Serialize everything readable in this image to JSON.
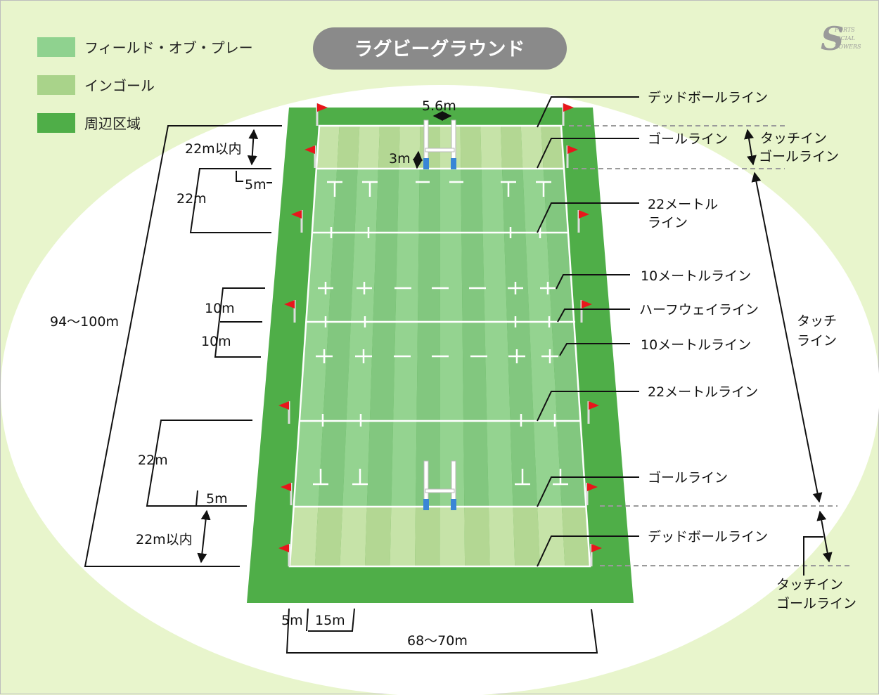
{
  "title": "ラグビーグラウンド",
  "legend": [
    {
      "label": "フィールド・オブ・プレー",
      "color": "#8fd28f"
    },
    {
      "label": "インゴール",
      "color": "#a9d38a"
    },
    {
      "label": "周辺区域",
      "color": "#4fae48"
    }
  ],
  "logo": {
    "line1": "PORTS",
    "line2": "OCIAL",
    "line3": "TOWERS"
  },
  "colors": {
    "background": "#e8f5cc",
    "oval": "#ffffff",
    "surround": "#4fae48",
    "field_light": "#94d390",
    "field_dark": "#82c77f",
    "ingoal_light": "#c6e3a8",
    "ingoal_dark": "#b3d793",
    "flag": "#e8161b",
    "post_pad": "#3a86d6",
    "title_pill": "#8a8a8a"
  },
  "right_labels": {
    "dead_ball_top": "デッドボールライン",
    "goal_top": "ゴールライン",
    "touch_ingoal_top_1": "タッチイン",
    "touch_ingoal_top_2": "ゴールライン",
    "m22_top_1": "22メートル",
    "m22_top_2": "ライン",
    "m10_top": "10メートルライン",
    "halfway": "ハーフウェイライン",
    "touch_1": "タッチ",
    "touch_2": "ライン",
    "m10_bottom": "10メートルライン",
    "m22_bottom": "22メートルライン",
    "goal_bottom": "ゴールライン",
    "dead_ball_bottom": "デッドボールライン",
    "touch_ingoal_bottom_1": "タッチイン",
    "touch_ingoal_bottom_2": "ゴールライン"
  },
  "dimensions": {
    "posts_width": "5.6m",
    "crossbar": "3m",
    "ingoal_top": "22m以内",
    "five_top": "5m",
    "twentytwo_top": "22m",
    "ten_a": "10m",
    "ten_b": "10m",
    "length": "94〜100m",
    "twentytwo_bottom": "22m",
    "five_bottom": "5m",
    "ingoal_bottom": "22m以内",
    "five_width": "5m",
    "fifteen_width": "15m",
    "width": "68〜70m"
  }
}
